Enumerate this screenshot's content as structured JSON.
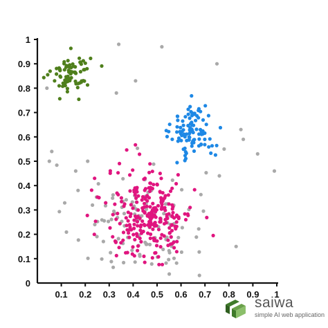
{
  "chart_data": {
    "type": "scatter",
    "title": "",
    "xlabel": "",
    "ylabel": "",
    "xlim": [
      0,
      1
    ],
    "ylim": [
      0,
      1
    ],
    "x_ticks": [
      "0.1",
      "0.2",
      "0.3",
      "0.4",
      "0.5",
      "0.6",
      "0.7",
      "0.8",
      "0.9",
      "1"
    ],
    "y_ticks": [
      "0.1",
      "0.2",
      "0.3",
      "0.4",
      "0.5",
      "0.6",
      "0.7",
      "0.8",
      "0.9",
      "1"
    ],
    "origin_label": "0",
    "grid": false,
    "legend": "none",
    "clusters": [
      {
        "color": "#4f7f1c",
        "center": [
          0.14,
          0.86
        ],
        "spread": [
          0.04,
          0.04
        ],
        "count": 80
      },
      {
        "color": "#1e88e5",
        "center": [
          0.65,
          0.62
        ],
        "spread": [
          0.045,
          0.055
        ],
        "count": 100
      },
      {
        "color": "#e0157f",
        "center": [
          0.47,
          0.28
        ],
        "spread": [
          0.09,
          0.095
        ],
        "count": 260
      },
      {
        "color": "#a9a9a9",
        "center": [
          0.42,
          0.25
        ],
        "spread": [
          0.14,
          0.12
        ],
        "count": 110
      }
    ],
    "outliers": {
      "color": "#a9a9a9",
      "points": [
        [
          0.34,
          0.98
        ],
        [
          0.52,
          0.97
        ],
        [
          0.75,
          0.9
        ],
        [
          0.41,
          0.83
        ],
        [
          0.04,
          0.8
        ],
        [
          0.33,
          0.78
        ],
        [
          0.85,
          0.63
        ],
        [
          0.86,
          0.59
        ],
        [
          0.78,
          0.55
        ],
        [
          0.92,
          0.53
        ],
        [
          0.06,
          0.54
        ],
        [
          0.05,
          0.5
        ],
        [
          0.99,
          0.46
        ],
        [
          0.16,
          0.46
        ],
        [
          0.21,
          0.5
        ],
        [
          0.17,
          0.38
        ],
        [
          0.83,
          0.15
        ],
        [
          0.76,
          0.44
        ],
        [
          0.23,
          0.32
        ],
        [
          0.24,
          0.24
        ]
      ]
    }
  },
  "logo": {
    "name": "saiwa",
    "tagline": "simple AI web application",
    "color": "#3f7a2a"
  }
}
